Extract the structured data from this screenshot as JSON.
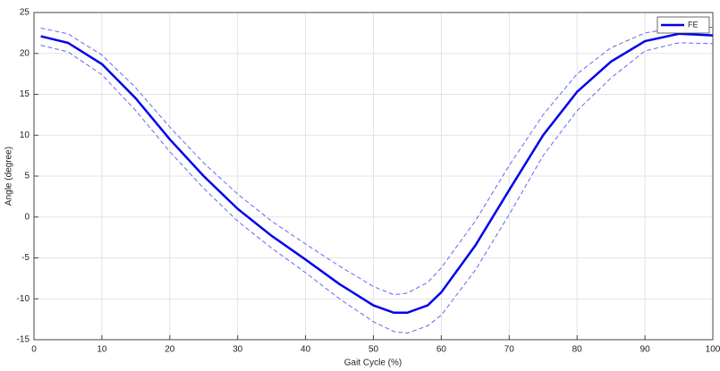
{
  "chart_data": {
    "type": "line",
    "xlabel": "Gait Cycle (%)",
    "ylabel": "Angle (degree)",
    "x": [
      1,
      5,
      10,
      15,
      20,
      25,
      30,
      35,
      40,
      45,
      50,
      53,
      55,
      58,
      60,
      65,
      70,
      75,
      80,
      85,
      90,
      95,
      100
    ],
    "series": [
      {
        "color": "#6666ee",
        "style": "dashed",
        "values": [
          23.1,
          22.4,
          19.8,
          15.8,
          11,
          6.6,
          2.8,
          -0.5,
          -3.3,
          -6,
          -8.5,
          -9.5,
          -9.3,
          -8,
          -6.2,
          -0.5,
          6.3,
          12.5,
          17.5,
          20.7,
          22.5,
          23.2,
          23.2
        ]
      },
      {
        "color": "#6666ee",
        "style": "dashed",
        "values": [
          21,
          20.2,
          17.4,
          13,
          8,
          3.5,
          -0.5,
          -3.8,
          -6.8,
          -10,
          -12.8,
          -14,
          -14.2,
          -13.3,
          -12,
          -6.5,
          0.3,
          7.5,
          13,
          17,
          20.3,
          21.3,
          21.2
        ]
      },
      {
        "name": "FE",
        "color": "#0000ee",
        "style": "solid",
        "values": [
          22.1,
          21.3,
          18.7,
          14.5,
          9.5,
          5,
          1,
          -2.3,
          -5.2,
          -8.2,
          -10.8,
          -11.7,
          -11.7,
          -10.8,
          -9.2,
          -3.5,
          3.3,
          10,
          15.3,
          19,
          21.5,
          22.4,
          22.2
        ]
      }
    ],
    "xlim": [
      0,
      100
    ],
    "xticks": [
      0,
      10,
      20,
      30,
      40,
      50,
      60,
      70,
      80,
      90,
      100
    ],
    "ylim": [
      -15,
      25
    ],
    "yticks": [
      -15,
      -10,
      -5,
      0,
      5,
      10,
      15,
      20,
      25
    ],
    "grid": true,
    "legend": "top-right"
  }
}
